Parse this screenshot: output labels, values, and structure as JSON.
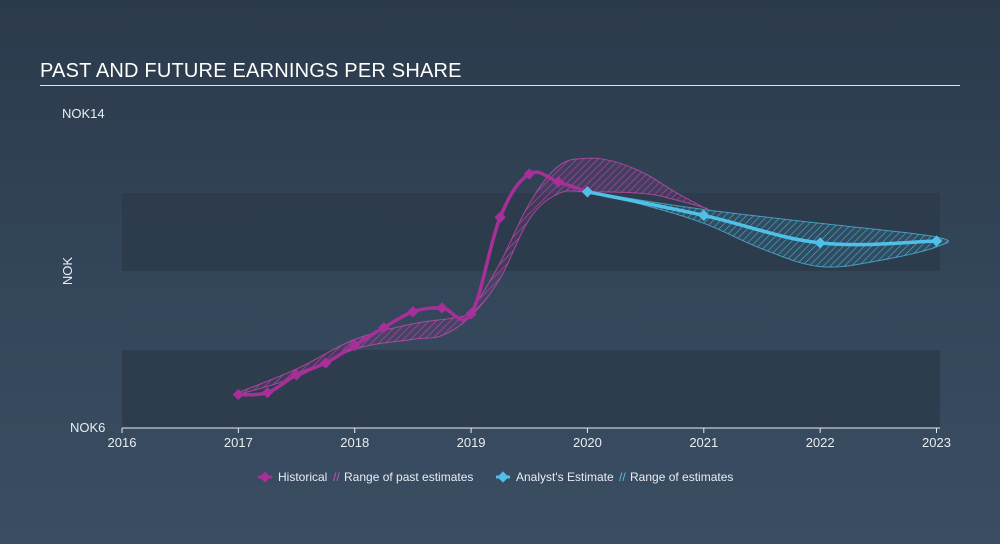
{
  "title": "PAST AND FUTURE EARNINGS PER SHARE",
  "colors": {
    "historical": "#a72f97",
    "historical_range": "#d04fb6",
    "estimate": "#4fc1e8",
    "estimate_range": "#4fc1e8",
    "band": "#2c3a4a"
  },
  "chart_data": {
    "type": "line",
    "title": "PAST AND FUTURE EARNINGS PER SHARE",
    "ylabel": "NOK",
    "xlim": [
      2016,
      2023.03
    ],
    "ylim": [
      6,
      14
    ],
    "y_tick_labels": [
      {
        "value": 14,
        "label": "NOK14"
      },
      {
        "value": 6,
        "label": "NOK6"
      }
    ],
    "x_ticks": [
      2016,
      2017,
      2018,
      2019,
      2020,
      2021,
      2022,
      2023
    ],
    "x_tick_labels": [
      "2016",
      "2017",
      "2018",
      "2019",
      "2020",
      "2021",
      "2022",
      "2023"
    ],
    "grid": false,
    "legend_position": "bottom-center",
    "legend": [
      {
        "key": "historical",
        "label": "Historical"
      },
      {
        "key": "historical_range",
        "label": "Range of past estimates"
      },
      {
        "key": "estimate",
        "label": "Analyst's Estimate"
      },
      {
        "key": "estimate_range",
        "label": "Range of estimates"
      }
    ],
    "series": [
      {
        "name": "Historical",
        "points": [
          {
            "x": 2017.0,
            "y": 6.85
          },
          {
            "x": 2017.25,
            "y": 6.9
          },
          {
            "x": 2017.5,
            "y": 7.35
          },
          {
            "x": 2017.75,
            "y": 7.65
          },
          {
            "x": 2018.0,
            "y": 8.1
          },
          {
            "x": 2018.25,
            "y": 8.55
          },
          {
            "x": 2018.5,
            "y": 8.95
          },
          {
            "x": 2018.75,
            "y": 9.05
          },
          {
            "x": 2019.0,
            "y": 8.9
          },
          {
            "x": 2019.25,
            "y": 11.35
          },
          {
            "x": 2019.5,
            "y": 12.45
          },
          {
            "x": 2019.75,
            "y": 12.25
          },
          {
            "x": 2020.0,
            "y": 12.0
          }
        ]
      },
      {
        "name": "Analyst's Estimate",
        "points": [
          {
            "x": 2020.0,
            "y": 12.0
          },
          {
            "x": 2021.0,
            "y": 11.4
          },
          {
            "x": 2022.0,
            "y": 10.7
          },
          {
            "x": 2023.0,
            "y": 10.75
          }
        ]
      }
    ],
    "past_estimates_range": {
      "upper": [
        {
          "x": 2017.0,
          "y": 6.9
        },
        {
          "x": 2017.5,
          "y": 7.5
        },
        {
          "x": 2018.0,
          "y": 8.25
        },
        {
          "x": 2018.5,
          "y": 8.65
        },
        {
          "x": 2018.85,
          "y": 8.8
        },
        {
          "x": 2019.0,
          "y": 9.0
        },
        {
          "x": 2019.25,
          "y": 10.2
        },
        {
          "x": 2019.5,
          "y": 11.7
        },
        {
          "x": 2019.75,
          "y": 12.65
        },
        {
          "x": 2020.0,
          "y": 12.85
        },
        {
          "x": 2020.25,
          "y": 12.75
        },
        {
          "x": 2020.5,
          "y": 12.45
        },
        {
          "x": 2020.75,
          "y": 12.0
        },
        {
          "x": 2021.0,
          "y": 11.6
        }
      ],
      "lower": [
        {
          "x": 2021.0,
          "y": 11.6
        },
        {
          "x": 2020.75,
          "y": 11.8
        },
        {
          "x": 2020.5,
          "y": 11.95
        },
        {
          "x": 2020.0,
          "y": 12.0
        },
        {
          "x": 2019.75,
          "y": 11.95
        },
        {
          "x": 2019.5,
          "y": 11.3
        },
        {
          "x": 2019.25,
          "y": 9.8
        },
        {
          "x": 2019.0,
          "y": 8.85
        },
        {
          "x": 2018.75,
          "y": 8.35
        },
        {
          "x": 2018.5,
          "y": 8.25
        },
        {
          "x": 2018.0,
          "y": 8.0
        },
        {
          "x": 2017.5,
          "y": 7.3
        },
        {
          "x": 2017.0,
          "y": 6.85
        }
      ]
    },
    "future_estimates_range": {
      "upper": [
        {
          "x": 2020.0,
          "y": 12.0
        },
        {
          "x": 2021.0,
          "y": 11.55
        },
        {
          "x": 2022.0,
          "y": 11.2
        },
        {
          "x": 2023.0,
          "y": 10.85
        }
      ],
      "lower": [
        {
          "x": 2023.0,
          "y": 10.6
        },
        {
          "x": 2022.5,
          "y": 10.25
        },
        {
          "x": 2022.0,
          "y": 10.1
        },
        {
          "x": 2021.5,
          "y": 10.55
        },
        {
          "x": 2021.0,
          "y": 11.2
        },
        {
          "x": 2020.5,
          "y": 11.65
        },
        {
          "x": 2020.0,
          "y": 12.0
        }
      ]
    }
  }
}
